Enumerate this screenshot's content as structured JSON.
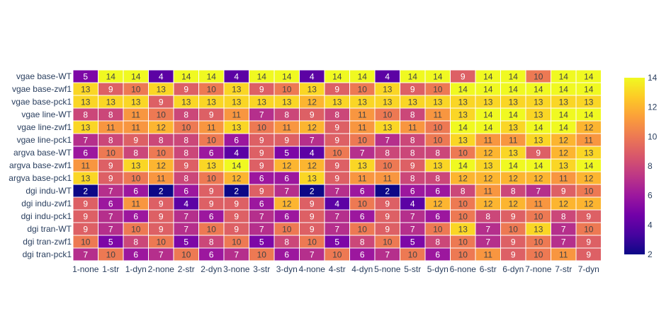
{
  "chart_data": {
    "type": "heatmap",
    "title": "",
    "xlabel": "",
    "ylabel": "",
    "colorscale": "plasma",
    "zmin": 2,
    "zmax": 14,
    "colorbar_ticks": [
      "2",
      "4",
      "6",
      "8",
      "10",
      "12",
      "14"
    ],
    "x": [
      "1-none",
      "1-str",
      "1-dyn",
      "2-none",
      "2-str",
      "2-dyn",
      "3-none",
      "3-str",
      "3-dyn",
      "4-none",
      "4-str",
      "4-dyn",
      "5-none",
      "5-str",
      "5-dyn",
      "6-none",
      "6-str",
      "6-dyn",
      "7-none",
      "7-str",
      "7-dyn"
    ],
    "y": [
      "vgae base-WT",
      "vgae base-zwf1",
      "vgae base-pck1",
      "vgae line-WT",
      "vgae line-zwf1",
      "vgae line-pck1",
      "argva base-WT",
      "argva base-zwf1",
      "argva base-pck1",
      "dgi indu-WT",
      "dgi indu-zwf1",
      "dgi indu-pck1",
      "dgi tran-WT",
      "dgi tran-zwf1",
      "dgi tran-pck1"
    ],
    "z": [
      [
        5,
        14,
        14,
        4,
        14,
        14,
        4,
        14,
        14,
        4,
        14,
        14,
        4,
        14,
        14,
        9,
        14,
        14,
        10,
        14,
        14
      ],
      [
        13,
        9,
        10,
        13,
        9,
        10,
        13,
        9,
        10,
        13,
        9,
        10,
        13,
        9,
        10,
        14,
        14,
        14,
        14,
        14,
        14
      ],
      [
        13,
        13,
        13,
        9,
        13,
        13,
        13,
        13,
        13,
        12,
        13,
        13,
        13,
        13,
        13,
        13,
        13,
        13,
        13,
        13,
        13
      ],
      [
        8,
        8,
        11,
        10,
        8,
        9,
        11,
        7,
        8,
        9,
        8,
        11,
        10,
        8,
        11,
        13,
        14,
        14,
        13,
        14,
        14
      ],
      [
        13,
        11,
        11,
        12,
        10,
        11,
        13,
        10,
        11,
        12,
        9,
        11,
        13,
        11,
        10,
        14,
        14,
        13,
        14,
        14,
        12
      ],
      [
        7,
        8,
        9,
        8,
        8,
        10,
        6,
        9,
        9,
        7,
        9,
        10,
        7,
        8,
        10,
        13,
        11,
        11,
        13,
        12,
        11
      ],
      [
        6,
        10,
        8,
        10,
        8,
        6,
        4,
        9,
        5,
        4,
        10,
        7,
        8,
        8,
        8,
        10,
        12,
        13,
        9,
        12,
        13
      ],
      [
        11,
        9,
        13,
        12,
        9,
        13,
        14,
        9,
        12,
        12,
        9,
        13,
        10,
        9,
        13,
        14,
        13,
        14,
        14,
        13,
        14
      ],
      [
        13,
        9,
        10,
        11,
        8,
        10,
        12,
        6,
        6,
        13,
        9,
        11,
        11,
        8,
        8,
        12,
        12,
        12,
        12,
        11,
        12
      ],
      [
        2,
        7,
        6,
        2,
        6,
        9,
        2,
        9,
        7,
        2,
        7,
        6,
        2,
        6,
        6,
        8,
        11,
        8,
        7,
        9,
        10
      ],
      [
        9,
        6,
        11,
        9,
        4,
        9,
        9,
        6,
        12,
        9,
        4,
        10,
        9,
        4,
        12,
        10,
        12,
        12,
        11,
        12,
        12
      ],
      [
        9,
        7,
        6,
        9,
        7,
        6,
        9,
        7,
        6,
        9,
        7,
        6,
        9,
        7,
        6,
        10,
        8,
        9,
        10,
        8,
        9
      ],
      [
        9,
        7,
        10,
        9,
        7,
        10,
        9,
        7,
        10,
        9,
        7,
        10,
        9,
        7,
        10,
        13,
        7,
        10,
        13,
        7,
        10
      ],
      [
        10,
        5,
        8,
        10,
        5,
        8,
        10,
        5,
        8,
        10,
        5,
        8,
        10,
        5,
        8,
        10,
        7,
        9,
        10,
        7,
        9
      ],
      [
        7,
        10,
        6,
        7,
        10,
        6,
        7,
        10,
        6,
        7,
        10,
        6,
        7,
        10,
        6,
        10,
        11,
        9,
        10,
        11,
        9
      ]
    ]
  }
}
